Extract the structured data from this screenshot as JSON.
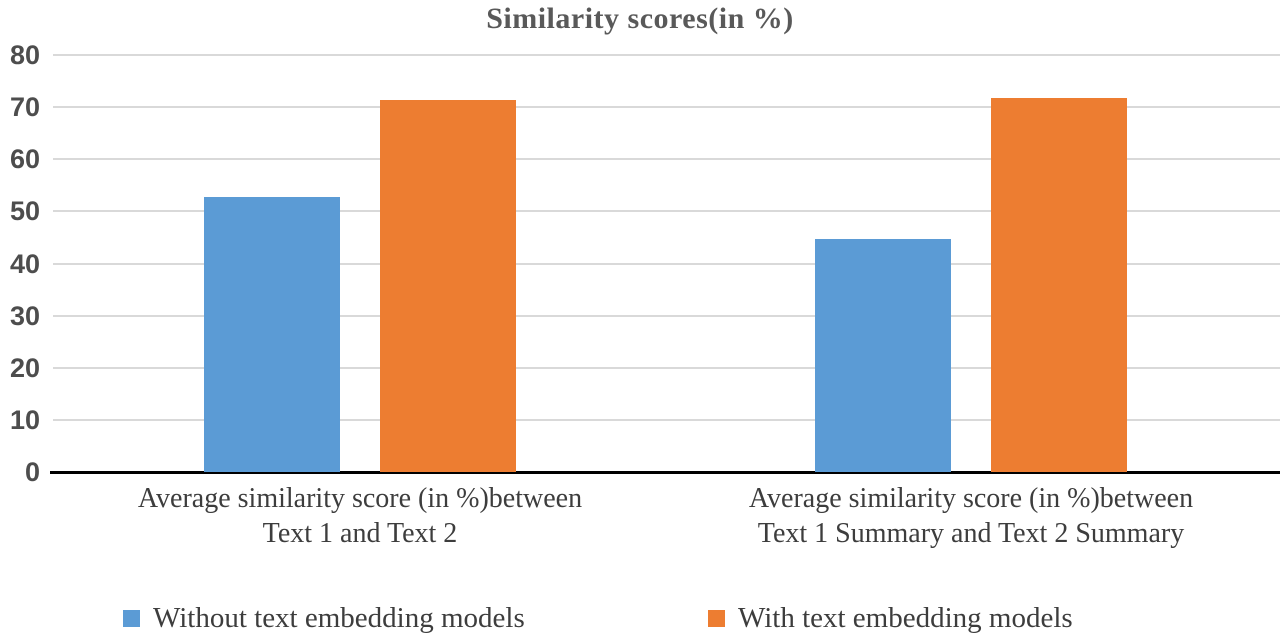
{
  "chart_data": {
    "type": "bar",
    "title": "Similarity scores(in %)",
    "categories": [
      {
        "line1": "Average similarity score (in %)between",
        "line2": "Text 1 and Text 2"
      },
      {
        "line1": "Average similarity score (in %)between",
        "line2": "Text 1 Summary and Text 2 Summary"
      }
    ],
    "series": [
      {
        "name": "Without text embedding models",
        "color": "#5B9BD5",
        "values": [
          52.7,
          44.7
        ]
      },
      {
        "name": "With text embedding models",
        "color": "#ED7D31",
        "values": [
          71.4,
          71.7
        ]
      }
    ],
    "xlabel": "",
    "ylabel": "",
    "ylim": [
      0,
      80
    ],
    "yticks": [
      0,
      10,
      20,
      30,
      40,
      50,
      60,
      70,
      80
    ],
    "grid": true,
    "legend_position": "bottom",
    "colors": {
      "gridline": "#d9d9d9",
      "axis": "#000000",
      "title_text": "#595959",
      "tick_text": "#4d4d4d",
      "label_text": "#3d3d3d",
      "background": "#ffffff"
    }
  }
}
